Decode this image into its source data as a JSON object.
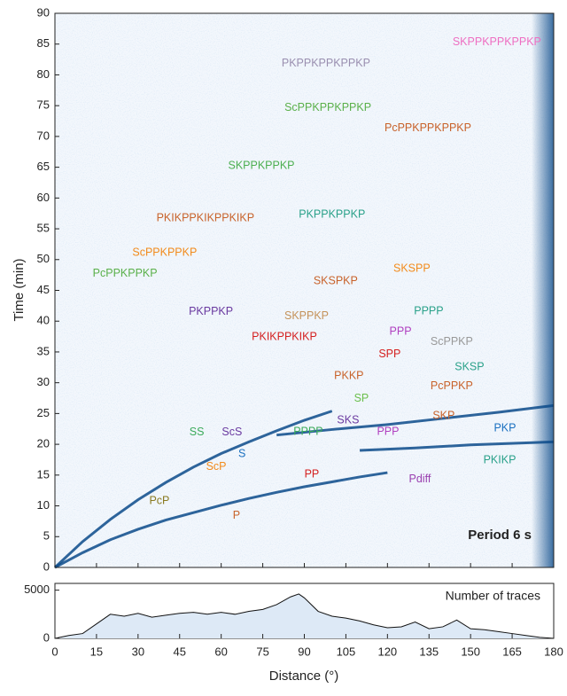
{
  "chart_data": [
    {
      "type": "line",
      "ylabel": "Time (min)",
      "note": "Period 6 s",
      "xlim": [
        0,
        180
      ],
      "ylim": [
        0,
        90
      ],
      "yticks": [
        0,
        5,
        10,
        15,
        20,
        25,
        30,
        35,
        40,
        45,
        50,
        55,
        60,
        65,
        70,
        75,
        80,
        85,
        90
      ],
      "series": [
        {
          "color": "#0b4a8a",
          "x": [
            0,
            10,
            20,
            30,
            40,
            50,
            60,
            70,
            80,
            90,
            100,
            110,
            120
          ],
          "values": [
            0,
            2.4,
            4.5,
            6.2,
            7.7,
            8.9,
            10.1,
            11.2,
            12.2,
            13.1,
            13.9,
            14.7,
            15.4
          ]
        },
        {
          "color": "#0b4a8a",
          "x": [
            0,
            10,
            20,
            30,
            40,
            50,
            60,
            70,
            80,
            90,
            100
          ],
          "values": [
            0,
            4.2,
            7.8,
            11,
            13.8,
            16.3,
            18.5,
            20.4,
            22.2,
            23.9,
            25.4
          ]
        },
        {
          "color": "#0b4a8a",
          "x": [
            110,
            130,
            150,
            180
          ],
          "values": [
            19,
            19.4,
            19.9,
            20.4
          ]
        },
        {
          "color": "#0b4a8a",
          "x": [
            80,
            100,
            120,
            140,
            160,
            180
          ],
          "values": [
            21.5,
            22.4,
            23.2,
            24.2,
            25.2,
            26.3
          ]
        }
      ],
      "annotations": [
        {
          "text": "SKPPKPPKPPKP",
          "x": 159.5,
          "y": 85.3,
          "color": "#ee6fc2"
        },
        {
          "text": "PKPPKPPKPPKP",
          "x": 97.8,
          "y": 81.8,
          "color": "#9a8fb0"
        },
        {
          "text": "ScPPKPPKPPKP",
          "x": 98.5,
          "y": 74.6,
          "color": "#5ab04a"
        },
        {
          "text": "PcPPKPPKPPKP",
          "x": 134.6,
          "y": 71.3,
          "color": "#c8622a"
        },
        {
          "text": "SKPPKPPKP",
          "x": 74.5,
          "y": 65.2,
          "color": "#4caf50"
        },
        {
          "text": "PKIKPPKIKPPKIKP",
          "x": 54.3,
          "y": 56.7,
          "color": "#c8622a"
        },
        {
          "text": "PKPPKPPKP",
          "x": 100,
          "y": 57.3,
          "color": "#2aa18a"
        },
        {
          "text": "ScPPKPPKP",
          "x": 39.6,
          "y": 51.1,
          "color": "#f28b1c"
        },
        {
          "text": "PcPPKPPKP",
          "x": 25.3,
          "y": 47.7,
          "color": "#5ab04a"
        },
        {
          "text": "SKSPP",
          "x": 128.8,
          "y": 48.5,
          "color": "#f28b1c"
        },
        {
          "text": "SKSPKP",
          "x": 101.3,
          "y": 46.5,
          "color": "#c8622a"
        },
        {
          "text": "PKPPKP",
          "x": 56.3,
          "y": 41.5,
          "color": "#6a3aa0"
        },
        {
          "text": "SKPPKP",
          "x": 90.8,
          "y": 40.8,
          "color": "#c4925a"
        },
        {
          "text": "PPPP",
          "x": 134.9,
          "y": 41.6,
          "color": "#2aa18a"
        },
        {
          "text": "PKIKPPKIKP",
          "x": 82.8,
          "y": 37.4,
          "color": "#d42020"
        },
        {
          "text": "PPP",
          "x": 124.7,
          "y": 38.3,
          "color": "#b040c0"
        },
        {
          "text": "ScPPKP",
          "x": 143.2,
          "y": 36.6,
          "color": "#999999"
        },
        {
          "text": "SPP",
          "x": 120.8,
          "y": 34.6,
          "color": "#d42020"
        },
        {
          "text": "SKSP",
          "x": 149.6,
          "y": 32.5,
          "color": "#2aa18a"
        },
        {
          "text": "PKKP",
          "x": 106.1,
          "y": 31.1,
          "color": "#c8622a"
        },
        {
          "text": "PcPPKP",
          "x": 143.2,
          "y": 29.4,
          "color": "#c8622a"
        },
        {
          "text": "SP",
          "x": 110.6,
          "y": 27.4,
          "color": "#6abf4b"
        },
        {
          "text": "SKP",
          "x": 140.3,
          "y": 24.6,
          "color": "#c8622a"
        },
        {
          "text": "SS",
          "x": 51.2,
          "y": 21.9,
          "color": "#3aaa5a"
        },
        {
          "text": "ScS",
          "x": 63.9,
          "y": 21.9,
          "color": "#6a3aa0"
        },
        {
          "text": "PPPP",
          "x": 91.4,
          "y": 22.0,
          "color": "#3aaa5a"
        },
        {
          "text": "SKS",
          "x": 105.8,
          "y": 23.9,
          "color": "#6a3aa0"
        },
        {
          "text": "PPP",
          "x": 120.2,
          "y": 22.0,
          "color": "#b040c0"
        },
        {
          "text": "PKP",
          "x": 162.4,
          "y": 22.6,
          "color": "#1a70c0"
        },
        {
          "text": "S",
          "x": 67.5,
          "y": 18.4,
          "color": "#1a70c0"
        },
        {
          "text": "ScP",
          "x": 58.2,
          "y": 16.3,
          "color": "#f28b1c"
        },
        {
          "text": "PKIKP",
          "x": 160.5,
          "y": 17.4,
          "color": "#2aa18a"
        },
        {
          "text": "PP",
          "x": 92.7,
          "y": 15.1,
          "color": "#d42020"
        },
        {
          "text": "Pdiff",
          "x": 131.7,
          "y": 14.3,
          "color": "#9a40b0"
        },
        {
          "text": "PcP",
          "x": 37.7,
          "y": 10.8,
          "color": "#8a7a20"
        },
        {
          "text": "P",
          "x": 65.5,
          "y": 8.4,
          "color": "#c8622a"
        }
      ]
    },
    {
      "type": "area",
      "title": "Number of traces",
      "xlabel": "Distance (°)",
      "color": "#dde9f6",
      "xlim": [
        0,
        180
      ],
      "ylim": [
        0,
        5700
      ],
      "xticks": [
        0,
        15,
        30,
        45,
        60,
        75,
        90,
        105,
        120,
        135,
        150,
        165,
        180
      ],
      "yticks": [
        0,
        5000
      ],
      "x": [
        0,
        5,
        10,
        15,
        20,
        25,
        30,
        35,
        40,
        45,
        50,
        55,
        60,
        65,
        70,
        75,
        80,
        85,
        88,
        90,
        95,
        100,
        105,
        110,
        115,
        120,
        125,
        130,
        135,
        140,
        145,
        150,
        155,
        160,
        165,
        170,
        175,
        180
      ],
      "values": [
        0,
        300,
        500,
        1500,
        2500,
        2300,
        2600,
        2200,
        2400,
        2600,
        2700,
        2500,
        2700,
        2500,
        2800,
        3000,
        3500,
        4300,
        4600,
        4200,
        2800,
        2300,
        2100,
        1800,
        1400,
        1100,
        1200,
        1700,
        1000,
        1200,
        1900,
        1000,
        900,
        700,
        500,
        300,
        100,
        0
      ]
    }
  ]
}
